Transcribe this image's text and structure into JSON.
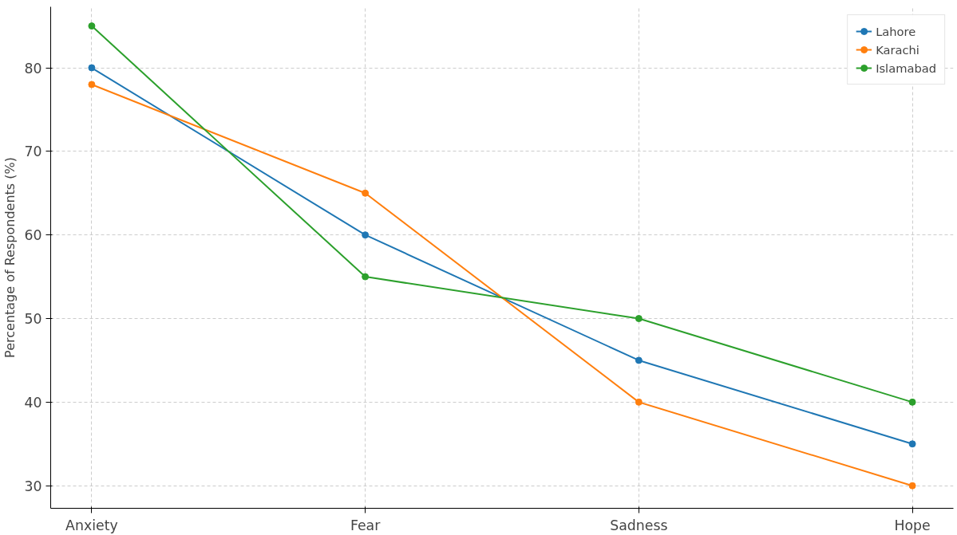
{
  "chart_data": {
    "type": "line",
    "ylabel": "Percentage of Respondents (%)",
    "categories": [
      "Anxiety",
      "Fear",
      "Sadness",
      "Hope"
    ],
    "series": [
      {
        "name": "Lahore",
        "color": "#1f77b4",
        "values": [
          80,
          60,
          45,
          35
        ]
      },
      {
        "name": "Karachi",
        "color": "#ff7f0e",
        "values": [
          78,
          65,
          40,
          30
        ]
      },
      {
        "name": "Islamabad",
        "color": "#2ca02c",
        "values": [
          85,
          55,
          50,
          40
        ]
      }
    ],
    "ylim": [
      27.3,
      87.3
    ],
    "yticks": [
      30,
      40,
      50,
      60,
      70,
      80
    ],
    "grid": true,
    "legend": "top right",
    "marker": "circle",
    "line_style": "solid"
  }
}
